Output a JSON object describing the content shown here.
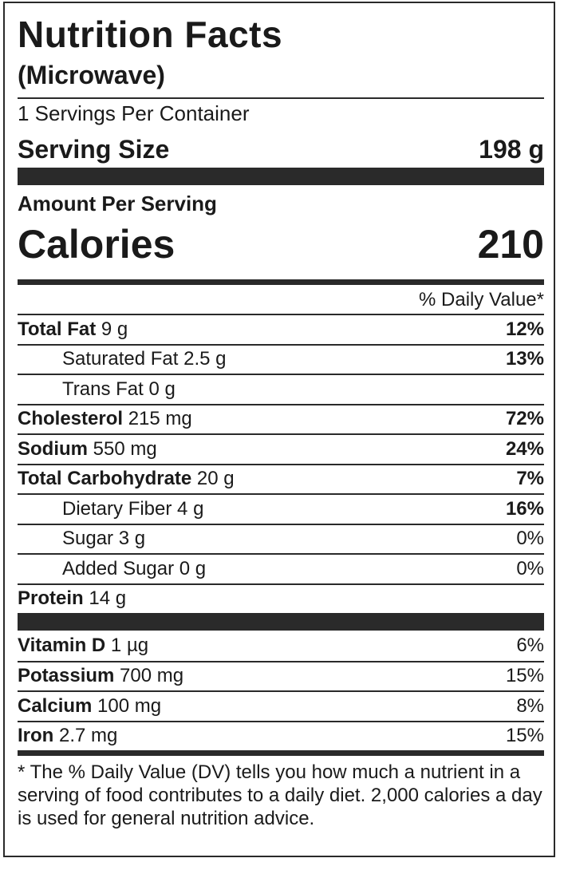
{
  "label": {
    "title": "Nutrition Facts",
    "subtitle": "(Microwave)",
    "servings_per_container": "1 Servings Per Container",
    "serving_size_label": "Serving Size",
    "serving_size_value": "198 g",
    "amount_per_serving": "Amount Per Serving",
    "calories_label": "Calories",
    "calories_value": "210",
    "daily_value_header": "% Daily Value*",
    "nutrients": [
      {
        "name": "Total Fat",
        "amount": "9 g",
        "pct": "12%"
      },
      {
        "name": "Saturated Fat",
        "amount": "2.5 g",
        "pct": "13%"
      },
      {
        "name": "Trans Fat",
        "amount": "0 g",
        "pct": ""
      },
      {
        "name": "Cholesterol",
        "amount": "215 mg",
        "pct": "72%"
      },
      {
        "name": "Sodium",
        "amount": "550 mg",
        "pct": "24%"
      },
      {
        "name": "Total Carbohydrate",
        "amount": "20 g",
        "pct": "7%"
      },
      {
        "name": "Dietary Fiber",
        "amount": "4 g",
        "pct": "16%"
      },
      {
        "name": "Sugar",
        "amount": "3 g",
        "pct": "0%"
      },
      {
        "name": "Added Sugar",
        "amount": "0 g",
        "pct": "0%"
      },
      {
        "name": "Protein",
        "amount": "14 g",
        "pct": ""
      }
    ],
    "vitamins": [
      {
        "name": "Vitamin D",
        "amount": "1 µg",
        "pct": "6%"
      },
      {
        "name": "Potassium",
        "amount": "700 mg",
        "pct": "15%"
      },
      {
        "name": "Calcium",
        "amount": "100 mg",
        "pct": "8%"
      },
      {
        "name": "Iron",
        "amount": "2.7 mg",
        "pct": "15%"
      }
    ],
    "footnote": "* The % Daily Value (DV) tells you how much a nutrient in a serving of food contributes to a daily diet. 2,000 calories a day is used for general nutrition advice."
  }
}
